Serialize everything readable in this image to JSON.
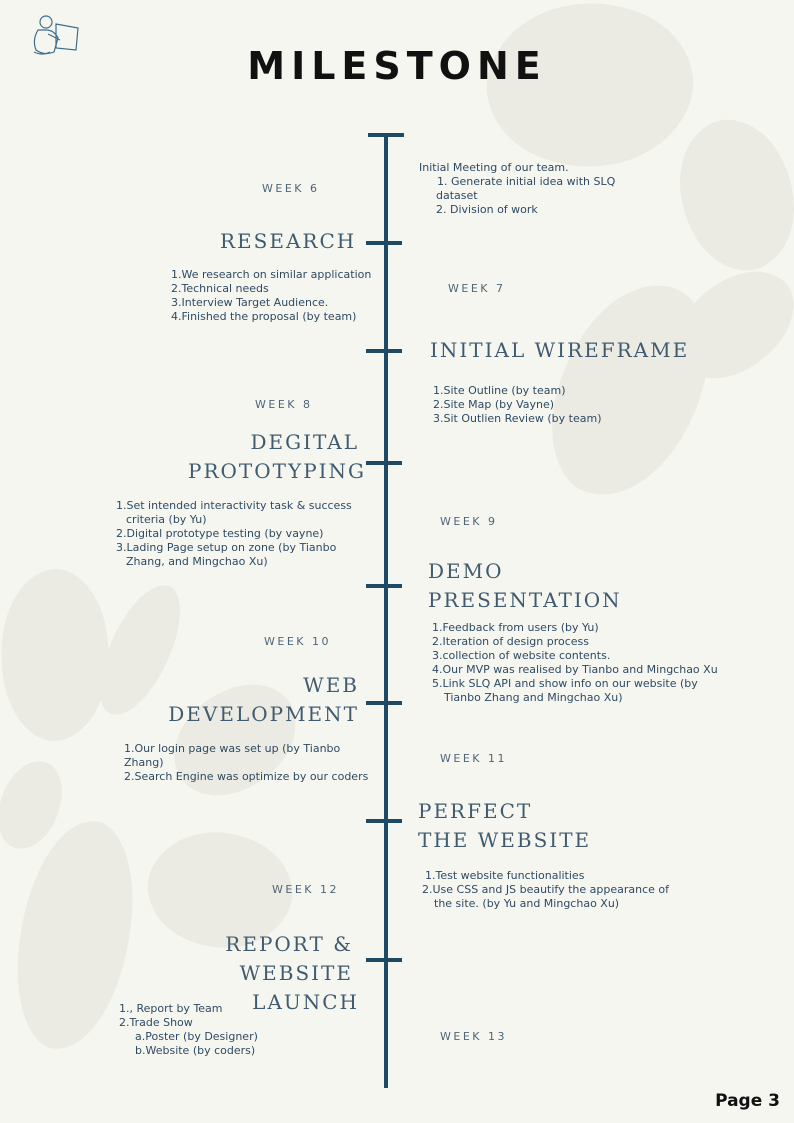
{
  "title": "MILESTONE",
  "page_label": "Page 3",
  "milestones": {
    "w6": {
      "week": "WEEK 6",
      "intro": "Initial Meeting of our team.",
      "items": [
        "1.  Generate  initial  idea  with  SLQ",
        "dataset",
        "2. Division of work"
      ]
    },
    "research": {
      "heading": "RESEARCH",
      "items": [
        "1.We research on similar application",
        "2.Technical needs",
        "3.Interview Target Audience.",
        "4.Finished the proposal (by team)"
      ]
    },
    "w7": {
      "week": "WEEK 7"
    },
    "wireframe": {
      "heading": "INITIAL WIREFRAME",
      "items": [
        "1.Site Outline (by team)",
        "2.Site Map (by Vayne)",
        "3.Sit Outlien Review (by team)"
      ]
    },
    "w8": {
      "week": "WEEK 8"
    },
    "prototyping": {
      "heading_1": "DEGITAL",
      "heading_2": "PROTOTYPING",
      "items": [
        "1.Set intended interactivity task & success",
        "criteria (by Yu)",
        "2.Digital prototype testing (by vayne)",
        "3.Lading Page setup on zone (by Tianbo",
        "Zhang, and Mingchao Xu)"
      ]
    },
    "w9": {
      "week": "WEEK 9"
    },
    "demo": {
      "heading_1": "DEMO",
      "heading_2": "PRESENTATION",
      "items": [
        "1.Feedback from users (by Yu)",
        "2.Iteration of design process",
        "3.collection of website contents.",
        "4.Our MVP was realised by Tianbo and Mingchao Xu",
        "5.Link SLQ API and show info on our website (by",
        "Tianbo Zhang and Mingchao Xu)"
      ]
    },
    "w10": {
      "week": "WEEK 10"
    },
    "webdev": {
      "heading_1": "WEB",
      "heading_2": "DEVELOPMENT",
      "items": [
        "1.Our login page was set up (by Tianbo Zhang)",
        "2.Search Engine was optimize by our coders"
      ]
    },
    "w11": {
      "week": "WEEK 11"
    },
    "perfect": {
      "heading_1": "PERFECT",
      "heading_2": "THE WEBSITE",
      "items": [
        "1.Test website functionalities",
        "2.Use CSS and JS beautify the appearance of",
        "the site. (by Yu and Mingchao Xu)"
      ]
    },
    "w12": {
      "week": "WEEK 12"
    },
    "launch": {
      "heading_1": "REPORT & WEBSITE",
      "heading_2": "LAUNCH",
      "items": [
        "1., Report by Team",
        "2.Trade Show",
        "a.Poster (by Designer)",
        "b.Website (by coders)"
      ]
    },
    "w13": {
      "week": "WEEK 13"
    }
  },
  "colors": {
    "timeline": "#1f4a66",
    "heading": "#405b6f",
    "background": "#f6f6f1"
  },
  "icons": {
    "logo": "reading-person-icon"
  }
}
